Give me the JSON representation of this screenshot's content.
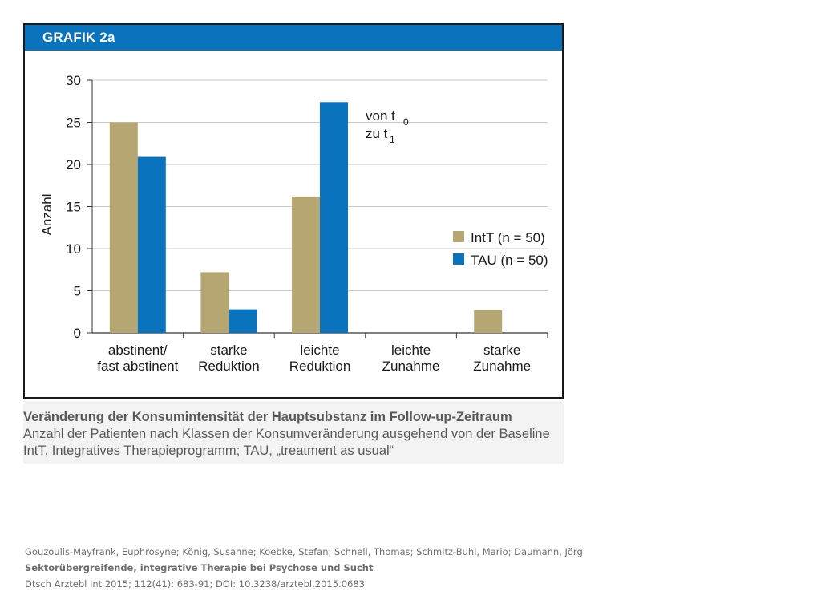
{
  "figure": {
    "header": "GRAFIK 2a",
    "caption_title": "Veränderung der Konsumintensität der Hauptsubstanz im Follow-up-Zeitraum",
    "caption_line1": "Anzahl der Patienten nach Klassen der Konsumveränderung ausgehend von der Baseline",
    "caption_line2": "IntT, Integratives Therapieprogramm; TAU, „treatment as usual“"
  },
  "citation": {
    "authors": "Gouzoulis-Mayfrank, Euphrosyne; König, Susanne; Koebke, Stefan; Schnell, Thomas; Schmitz-Buhl, Mario; Daumann, Jörg",
    "title": "Sektorübergreifende, integrative Therapie bei Psychose und Sucht",
    "source": "Dtsch Arztebl Int 2015; 112(41): 683-91; DOI: 10.3238/arztebl.2015.0683"
  },
  "chart_data": {
    "type": "bar",
    "ylabel": "Anzahl",
    "ylim": [
      0,
      30
    ],
    "yticks": [
      0,
      5,
      10,
      15,
      20,
      25,
      30
    ],
    "grid": true,
    "categories": [
      [
        "abstinent/",
        "fast abstinent"
      ],
      [
        "starke",
        "Reduktion"
      ],
      [
        "leichte",
        "Reduktion"
      ],
      [
        "leichte",
        "Zunahme"
      ],
      [
        "starke",
        "Zunahme"
      ]
    ],
    "series": [
      {
        "name": "IntT (n = 50)",
        "color": "#b5a672",
        "values": [
          25,
          7.2,
          16.2,
          0,
          2.7
        ]
      },
      {
        "name": "TAU (n = 50)",
        "color": "#0a73be",
        "values": [
          20.9,
          2.8,
          27.4,
          0,
          0
        ]
      }
    ],
    "annotation": {
      "line1_text": "von t",
      "line1_sub": "0",
      "line2_text": "zu t",
      "line2_sub": "1"
    },
    "legend_position": "right"
  }
}
